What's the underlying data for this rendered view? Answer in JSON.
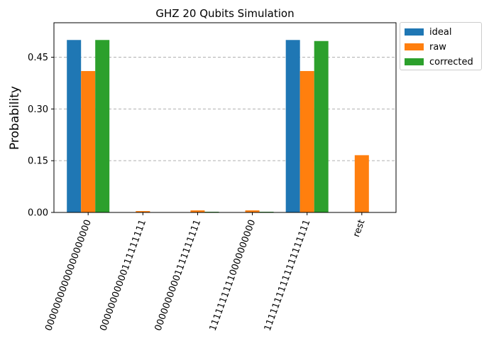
{
  "chart_data": {
    "type": "bar",
    "title": "GHZ 20 Qubits Simulation",
    "xlabel": "",
    "ylabel": "Probability",
    "ylim": [
      0,
      0.55
    ],
    "yticks": [
      "0.00",
      "0.15",
      "0.30",
      "0.45"
    ],
    "grid": true,
    "legend_position": "outside-top-right",
    "categories": [
      "00000000000000000000",
      "00000000000111111111",
      "00000000001111111111",
      "11111111110000000000",
      "11111111111111111111",
      "rest"
    ],
    "series": [
      {
        "name": "ideal",
        "color": "#1f77b4",
        "values": [
          0.5,
          0,
          0,
          0,
          0.5,
          0
        ]
      },
      {
        "name": "raw",
        "color": "#ff7f0e",
        "values": [
          0.41,
          0.004,
          0.006,
          0.006,
          0.41,
          0.166
        ]
      },
      {
        "name": "corrected",
        "color": "#2ca02c",
        "values": [
          0.5,
          0.0,
          0.002,
          0.002,
          0.497,
          0.0
        ]
      }
    ]
  }
}
